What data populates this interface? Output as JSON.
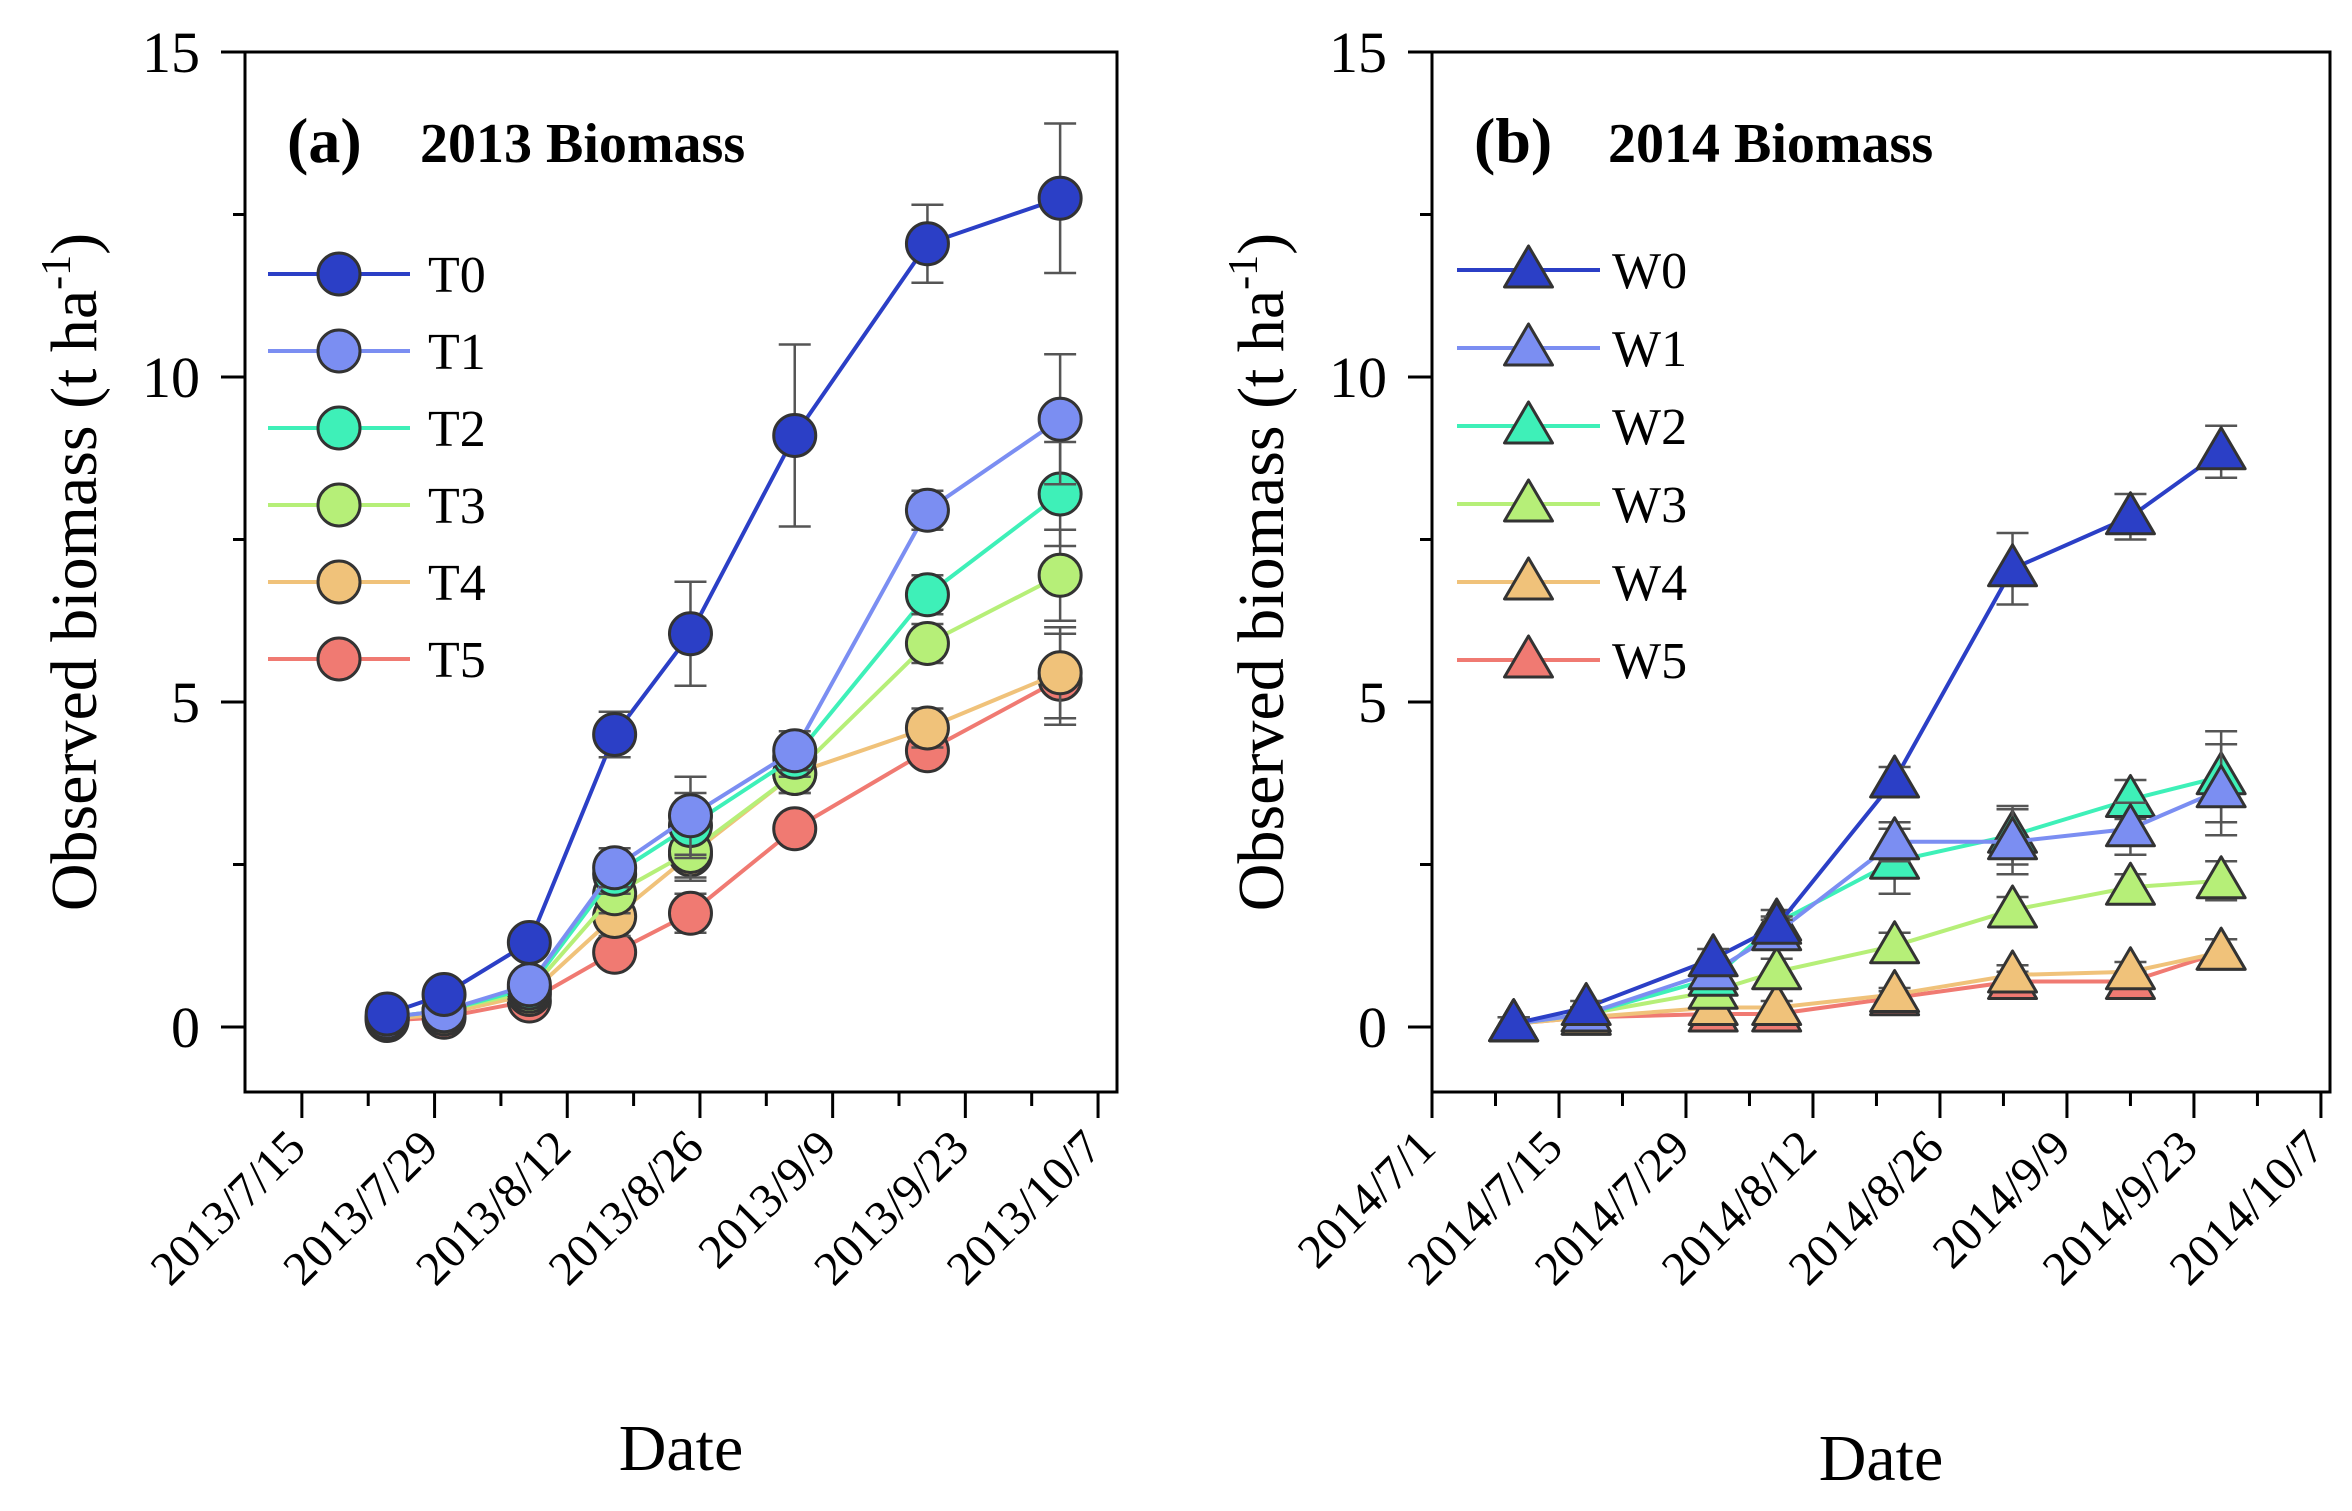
{
  "chart_data": [
    {
      "type": "line",
      "panel": "(a)",
      "title": "2013 Biomass",
      "marker": "circle",
      "xlabel": "Date",
      "ylabel": "Observed biomass (t ha",
      "ylabel_sup": "-1",
      "ylabel_close": ")",
      "ylim": [
        -1,
        15
      ],
      "xlim_days": [
        -6,
        86
      ],
      "yticks": [
        0,
        5,
        10,
        15
      ],
      "ytick_labels": [
        "0",
        "5",
        "10",
        "15"
      ],
      "xtick_days": [
        0,
        14,
        28,
        42,
        56,
        70,
        84
      ],
      "xtick_labels": [
        "2013/7/15",
        "2013/7/29",
        "2013/8/12",
        "2013/8/26",
        "2013/9/9",
        "2013/9/23",
        "2013/10/7"
      ],
      "x_unit": "days since 2013/7/15",
      "x": [
        9,
        15,
        24,
        33,
        41,
        52,
        66,
        80
      ],
      "series": [
        {
          "name": "T0",
          "color": "#2b3fc6",
          "values": [
            0.2,
            0.5,
            1.3,
            4.5,
            6.05,
            9.1,
            12.05,
            12.75
          ],
          "errors": [
            0.1,
            0.15,
            0.2,
            0.35,
            0.8,
            1.4,
            0.6,
            1.15
          ]
        },
        {
          "name": "T1",
          "color": "#7b8ef2",
          "values": [
            0.15,
            0.25,
            0.65,
            2.45,
            3.25,
            4.25,
            7.95,
            9.35
          ],
          "errors": [
            0.1,
            0.1,
            0.15,
            0.3,
            0.6,
            0.3,
            0.3,
            1.0
          ]
        },
        {
          "name": "T2",
          "color": "#3ef0b8",
          "values": [
            0.15,
            0.25,
            0.6,
            2.35,
            3.1,
            4.15,
            6.65,
            8.2
          ],
          "errors": [
            0.1,
            0.1,
            0.15,
            0.3,
            0.5,
            0.3,
            0.3,
            0.8
          ]
        },
        {
          "name": "T3",
          "color": "#b6ef78",
          "values": [
            0.15,
            0.25,
            0.55,
            2.05,
            2.7,
            3.9,
            5.9,
            6.95
          ],
          "errors": [
            0.1,
            0.1,
            0.15,
            0.3,
            0.4,
            0.3,
            0.3,
            0.7
          ]
        },
        {
          "name": "T4",
          "color": "#f0c27a",
          "values": [
            0.12,
            0.2,
            0.5,
            1.7,
            2.65,
            3.9,
            4.6,
            5.45
          ],
          "errors": [
            0.1,
            0.1,
            0.15,
            0.3,
            0.4,
            0.3,
            0.3,
            0.7
          ]
        },
        {
          "name": "T5",
          "color": "#f07a72",
          "values": [
            0.1,
            0.15,
            0.4,
            1.15,
            1.75,
            3.05,
            4.25,
            5.35
          ],
          "errors": [
            0.1,
            0.1,
            0.15,
            0.2,
            0.3,
            0.2,
            0.2,
            0.7
          ]
        }
      ]
    },
    {
      "type": "line",
      "panel": "(b)",
      "title": "2014 Biomass",
      "marker": "triangle",
      "xlabel": "Date",
      "ylabel": "Observed biomass (t ha",
      "ylabel_sup": "-1",
      "ylabel_close": ")",
      "ylim": [
        -1,
        15
      ],
      "xlim_days": [
        0,
        99
      ],
      "yticks": [
        0,
        5,
        10,
        15
      ],
      "ytick_labels": [
        "0",
        "5",
        "10",
        "15"
      ],
      "xtick_days": [
        0,
        14,
        28,
        42,
        56,
        70,
        84,
        98
      ],
      "xtick_labels": [
        "2014/7/1",
        "2014/7/15",
        "2014/7/29",
        "2014/8/12",
        "2014/8/26",
        "2014/9/9",
        "2014/9/23",
        "2014/10/7"
      ],
      "x_unit": "days since 2014/7/1",
      "x": [
        9,
        17,
        31,
        38,
        51,
        64,
        77,
        87
      ],
      "series": [
        {
          "name": "W0",
          "color": "#2b3fc6",
          "values": [
            0.05,
            0.3,
            1.05,
            1.55,
            3.8,
            7.05,
            7.85,
            8.85
          ],
          "errors": [
            0.1,
            0.1,
            0.15,
            0.15,
            0.2,
            0.55,
            0.35,
            0.4
          ]
        },
        {
          "name": "W1",
          "color": "#7b8ef2",
          "values": [
            0.05,
            0.2,
            0.85,
            1.45,
            2.85,
            2.85,
            3.05,
            3.65
          ],
          "errors": [
            0.1,
            0.1,
            0.15,
            0.2,
            0.3,
            0.5,
            0.4,
            0.7
          ]
        },
        {
          "name": "W2",
          "color": "#3ef0b8",
          "values": [
            0.05,
            0.2,
            0.75,
            1.6,
            2.55,
            2.95,
            3.5,
            3.85
          ],
          "errors": [
            0.1,
            0.1,
            0.15,
            0.2,
            0.5,
            0.45,
            0.3,
            0.7
          ]
        },
        {
          "name": "W3",
          "color": "#b6ef78",
          "values": [
            0.05,
            0.2,
            0.55,
            0.85,
            1.25,
            1.8,
            2.15,
            2.25
          ],
          "errors": [
            0.1,
            0.1,
            0.15,
            0.2,
            0.2,
            0.2,
            0.2,
            0.3
          ]
        },
        {
          "name": "W4",
          "color": "#f0c27a",
          "values": [
            0.05,
            0.15,
            0.3,
            0.3,
            0.5,
            0.8,
            0.85,
            1.15
          ],
          "errors": [
            0.1,
            0.1,
            0.1,
            0.1,
            0.1,
            0.15,
            0.15,
            0.2
          ]
        },
        {
          "name": "W5",
          "color": "#f07a72",
          "values": [
            0.05,
            0.15,
            0.2,
            0.2,
            0.45,
            0.7,
            0.7,
            1.15
          ],
          "errors": [
            0.1,
            0.1,
            0.1,
            0.1,
            0.1,
            0.15,
            0.15,
            0.2
          ]
        }
      ]
    }
  ]
}
